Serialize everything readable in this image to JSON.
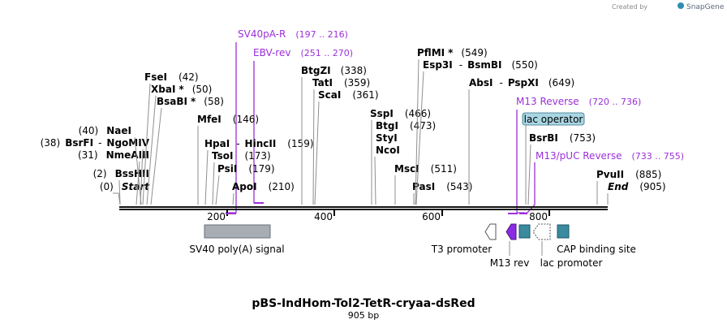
{
  "branding": {
    "created_by": "Created by",
    "logo": "SnapGene",
    "logo_icon": "snapgene-icon"
  },
  "map": {
    "title": "pBS-IndHom-Tol2-TetR-cryaa-dsRed",
    "length_label": "905 bp",
    "ticks": [
      "200",
      "400",
      "600",
      "800"
    ]
  },
  "sites": [
    {
      "id": "start",
      "name": "Start",
      "pos": "(0)",
      "position": 0
    },
    {
      "id": "bsshii",
      "name": "BssHII",
      "pos": "(2)",
      "position": 2
    },
    {
      "id": "nmeaiii",
      "name": "NmeAIII",
      "pos": "(31)",
      "position": 31
    },
    {
      "id": "bsrfi",
      "name": "BsrFI",
      "sep": "-",
      "name2": "NgoMIV",
      "pos": "(38)",
      "position": 38
    },
    {
      "id": "naei",
      "name": "NaeI",
      "pos": "(40)",
      "position": 40
    },
    {
      "id": "bsabi",
      "name": "BsaBI",
      "star": "*",
      "pos": "(58)",
      "position": 58
    },
    {
      "id": "xbai",
      "name": "XbaI",
      "star": "*",
      "pos": "(50)",
      "position": 50
    },
    {
      "id": "fsei",
      "name": "FseI",
      "pos": "(42)",
      "position": 42
    },
    {
      "id": "mfei",
      "name": "MfeI",
      "pos": "(146)",
      "position": 146
    },
    {
      "id": "apoi",
      "name": "ApoI",
      "pos": "(210)",
      "position": 210
    },
    {
      "id": "psii",
      "name": "PsiI",
      "pos": "(179)",
      "position": 179
    },
    {
      "id": "tsoi",
      "name": "TsoI",
      "pos": "(173)",
      "position": 173
    },
    {
      "id": "hpai",
      "name": "HpaI",
      "sep": "-",
      "name2": "HincII",
      "pos": "(159)",
      "position": 159
    },
    {
      "id": "btgzi",
      "name": "BtgZI",
      "pos": "(338)",
      "position": 338
    },
    {
      "id": "tati",
      "name": "TatI",
      "pos": "(359)",
      "position": 359
    },
    {
      "id": "scai",
      "name": "ScaI",
      "pos": "(361)",
      "position": 361
    },
    {
      "id": "sspi",
      "name": "SspI",
      "pos": "(466)",
      "position": 466
    },
    {
      "id": "btgi",
      "name": "BtgI",
      "pos": "(473)",
      "position": 473
    },
    {
      "id": "styi",
      "name": "StyI",
      "position": 473
    },
    {
      "id": "ncoi",
      "name": "NcoI",
      "position": 473
    },
    {
      "id": "msci",
      "name": "MscI",
      "pos": "(511)",
      "position": 511
    },
    {
      "id": "pasi",
      "name": "PasI",
      "pos": "(543)",
      "position": 543
    },
    {
      "id": "pflmi",
      "name": "PflMI",
      "star": "*",
      "pos": "(549)",
      "position": 549
    },
    {
      "id": "esp3i",
      "name": "Esp3I",
      "sep": "-",
      "name2": "BsmBI",
      "pos": "(550)",
      "position": 550
    },
    {
      "id": "absi",
      "name": "AbsI",
      "sep": "-",
      "name2": "PspXI",
      "pos": "(649)",
      "position": 649
    },
    {
      "id": "bsrbi",
      "name": "BsrBI",
      "pos": "(753)",
      "position": 753
    },
    {
      "id": "pvuii",
      "name": "PvuII",
      "pos": "(885)",
      "position": 885
    },
    {
      "id": "end",
      "name": "End",
      "pos": "(905)",
      "position": 905
    }
  ],
  "primers": [
    {
      "id": "sv40pa-r",
      "name": "SV40pA-R",
      "range": "(197 .. 216)",
      "start": 197,
      "end": 216,
      "direction": "reverse"
    },
    {
      "id": "ebv-rev",
      "name": "EBV-rev",
      "range": "(251 .. 270)",
      "start": 251,
      "end": 270,
      "direction": "reverse"
    },
    {
      "id": "m13-reverse",
      "name": "M13 Reverse",
      "range": "(720 .. 736)",
      "start": 720,
      "end": 736,
      "direction": "reverse"
    },
    {
      "id": "m13-puc-reverse",
      "name": "M13/pUC Reverse",
      "range": "(733 .. 755)",
      "start": 733,
      "end": 755,
      "direction": "reverse"
    }
  ],
  "features": [
    {
      "id": "sv40",
      "label": "SV40 poly(A) signal",
      "start": 160,
      "end": 282,
      "color": "#a8adb4"
    },
    {
      "id": "t3",
      "label": "T3 promoter",
      "start": 681,
      "end": 699,
      "color": "#ffffff"
    },
    {
      "id": "m13rev",
      "label": "M13 rev",
      "start": 720,
      "end": 736,
      "color": "#8a2be2"
    },
    {
      "id": "lacop",
      "label": "lac operator",
      "start": 744,
      "end": 760,
      "color": "#3a8aa0"
    },
    {
      "id": "lacprom",
      "label": "lac promoter",
      "start": 768,
      "end": 800,
      "color": "#ffffff"
    },
    {
      "id": "cap",
      "label": "CAP binding site",
      "start": 808,
      "end": 830,
      "color": "#3a8aa0"
    }
  ],
  "colors": {
    "primer": "#9b30d9",
    "accent": "#2f8db3",
    "lac_operator_tag": "#a9d6e3"
  }
}
